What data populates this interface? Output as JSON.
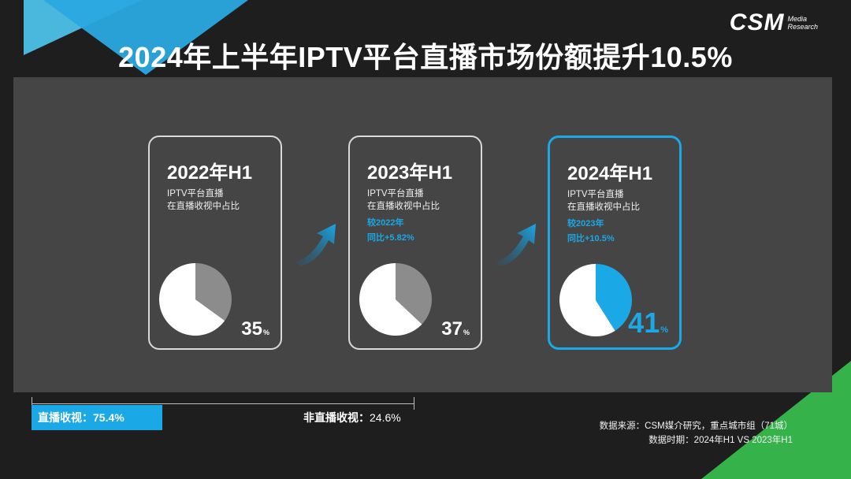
{
  "logo": {
    "main": "CSM",
    "sub_line1": "Media",
    "sub_line2": "Research"
  },
  "title": "2024年上半年IPTV平台直播市场份额提升10.5%",
  "cards": [
    {
      "year": "2022年H1",
      "desc_line1": "IPTV平台直播",
      "desc_line2": "在直播收视中占比",
      "compare_line1": "",
      "compare_line2": "",
      "percent": "35",
      "unit": "%"
    },
    {
      "year": "2023年H1",
      "desc_line1": "IPTV平台直播",
      "desc_line2": "在直播收视中占比",
      "compare_line1": "较2022年",
      "compare_line2": "同比+5.82%",
      "percent": "37",
      "unit": "%"
    },
    {
      "year": "2024年H1",
      "desc_line1": "IPTV平台直播",
      "desc_line2": "在直播收视中占比",
      "compare_line1": "较2023年",
      "compare_line2": "同比+10.5%",
      "percent": "41",
      "unit": "%"
    }
  ],
  "bottom": {
    "live_label": "直播收视：75.4%",
    "nonlive_label": "非直播收视：",
    "nonlive_value": "24.6%"
  },
  "source": {
    "line1": "数据来源：CSM媒介研究，重点城市组（71城）",
    "line2": "数据时期：2024年H1 VS 2023年H1"
  },
  "colors": {
    "accent": "#1aa8e6",
    "panel": "#454545",
    "background": "#1e1e1e",
    "pie_gray": "#8c8c8c",
    "pie_white": "#ffffff",
    "green": "#35b34a"
  },
  "chart_data": [
    {
      "type": "pie",
      "title": "2022年H1",
      "slices": [
        {
          "value": 35
        },
        {
          "value": 65
        }
      ]
    },
    {
      "type": "pie",
      "title": "2023年H1",
      "slices": [
        {
          "value": 37
        },
        {
          "value": 63
        }
      ]
    },
    {
      "type": "pie",
      "title": "2024年H1",
      "slices": [
        {
          "value": 41
        },
        {
          "value": 59
        }
      ]
    }
  ]
}
